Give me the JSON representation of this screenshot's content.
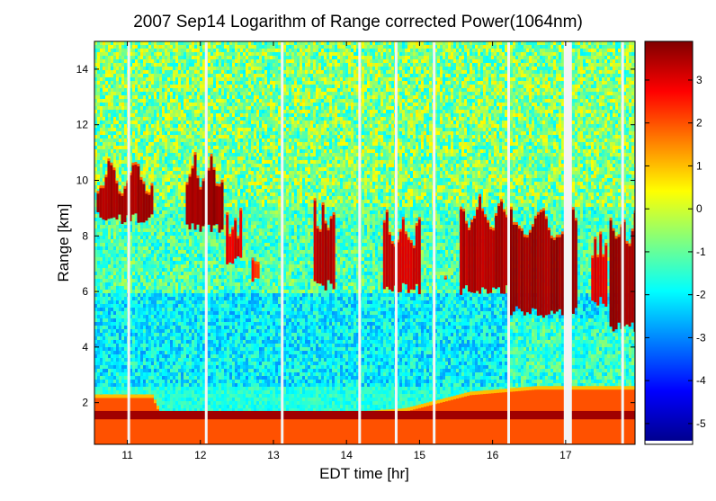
{
  "chart_data": {
    "type": "heatmap",
    "title": "2007 Sep14  Logarithm of Range corrected Power(1064nm)",
    "xlabel": "EDT time [hr]",
    "ylabel": "Range [km]",
    "xlim": [
      10.55,
      17.95
    ],
    "ylim": [
      0.5,
      15
    ],
    "x_ticks": [
      "11",
      "12",
      "13",
      "14",
      "15",
      "16",
      "17"
    ],
    "y_ticks": [
      "2",
      "4",
      "6",
      "8",
      "10",
      "12",
      "14"
    ],
    "colorbar": {
      "range": [
        -5.4,
        3.9
      ],
      "ticks": [
        "3",
        "2",
        "1",
        "0",
        "-1",
        "-2",
        "-3",
        "-4",
        "-5"
      ],
      "colormap": "jet"
    },
    "data_gaps_hr": [
      11.02,
      12.08,
      13.12,
      14.18,
      14.68,
      15.2,
      16.22,
      17.03,
      17.78
    ],
    "boundary_layer_top_km": [
      [
        10.55,
        2.2
      ],
      [
        11.35,
        2.2
      ],
      [
        11.45,
        1.6
      ],
      [
        13.1,
        1.6
      ],
      [
        13.7,
        1.5
      ],
      [
        14.8,
        1.7
      ],
      [
        15.7,
        2.3
      ],
      [
        16.6,
        2.5
      ],
      [
        17.95,
        2.5
      ]
    ],
    "cloud_layers": [
      {
        "x_start": 10.58,
        "x_end": 11.35,
        "base_km": 8.4,
        "top_km": 11.0,
        "intensity": 3.7
      },
      {
        "x_start": 11.8,
        "x_end": 12.3,
        "base_km": 8.1,
        "top_km": 11.2,
        "intensity": 3.8
      },
      {
        "x_start": 12.35,
        "x_end": 12.55,
        "base_km": 6.9,
        "top_km": 9.3,
        "intensity": 3.2
      },
      {
        "x_start": 12.7,
        "x_end": 12.8,
        "base_km": 6.3,
        "top_km": 8.3,
        "intensity": 2.6
      },
      {
        "x_start": 13.55,
        "x_end": 13.82,
        "base_km": 6.0,
        "top_km": 9.5,
        "intensity": 3.6
      },
      {
        "x_start": 14.5,
        "x_end": 15.0,
        "base_km": 5.9,
        "top_km": 9.0,
        "intensity": 3.4
      },
      {
        "x_start": 15.3,
        "x_end": 15.35,
        "base_km": 6.1,
        "top_km": 7.1,
        "intensity": 3.0
      },
      {
        "x_start": 15.55,
        "x_end": 16.2,
        "base_km": 5.8,
        "top_km": 9.7,
        "intensity": 3.6
      },
      {
        "x_start": 16.2,
        "x_end": 17.15,
        "base_km": 5.0,
        "top_km": 9.4,
        "intensity": 3.8
      },
      {
        "x_start": 17.35,
        "x_end": 17.55,
        "base_km": 5.4,
        "top_km": 8.5,
        "intensity": 3.2
      },
      {
        "x_start": 17.6,
        "x_end": 17.95,
        "base_km": 4.5,
        "top_km": 9.2,
        "intensity": 3.8
      }
    ]
  }
}
